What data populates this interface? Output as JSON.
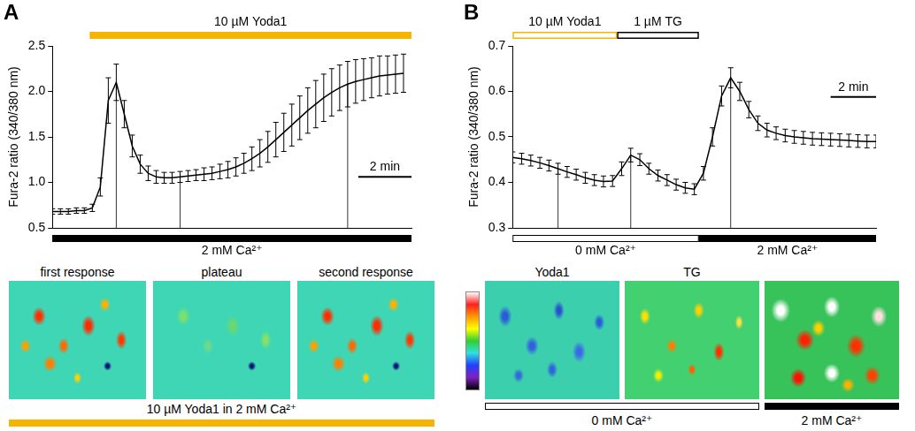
{
  "chart_data": [
    {
      "panel": "A",
      "type": "line",
      "y_label": "Fura-2 ratio (340/380 nm)",
      "x": [
        0,
        0.3,
        0.6,
        0.9,
        1.2,
        1.5,
        1.8,
        2.1,
        2.4,
        2.7,
        3,
        3.3,
        3.6,
        3.9,
        4.2,
        4.5,
        4.8,
        5.1,
        5.4,
        5.7,
        6,
        6.3,
        6.6,
        6.9,
        7.2,
        7.5,
        7.8,
        8.1,
        8.4,
        8.7,
        9,
        9.3,
        9.6,
        9.9,
        10.2,
        10.5,
        10.8,
        11.1,
        11.4,
        11.7,
        12,
        12.3,
        12.6,
        12.9,
        13.2
      ],
      "values": [
        0.68,
        0.68,
        0.68,
        0.69,
        0.69,
        0.72,
        0.95,
        1.9,
        2.1,
        1.75,
        1.4,
        1.2,
        1.1,
        1.06,
        1.05,
        1.05,
        1.06,
        1.07,
        1.08,
        1.09,
        1.1,
        1.12,
        1.14,
        1.17,
        1.21,
        1.26,
        1.32,
        1.39,
        1.47,
        1.55,
        1.63,
        1.71,
        1.79,
        1.86,
        1.93,
        1.99,
        2.04,
        2.08,
        2.11,
        2.13,
        2.15,
        2.17,
        2.18,
        2.19,
        2.2
      ],
      "errors": [
        0.03,
        0.03,
        0.03,
        0.03,
        0.03,
        0.04,
        0.1,
        0.25,
        0.2,
        0.15,
        0.12,
        0.1,
        0.08,
        0.07,
        0.06,
        0.06,
        0.06,
        0.06,
        0.06,
        0.07,
        0.07,
        0.08,
        0.09,
        0.1,
        0.11,
        0.13,
        0.15,
        0.17,
        0.19,
        0.21,
        0.23,
        0.24,
        0.25,
        0.26,
        0.26,
        0.26,
        0.25,
        0.25,
        0.24,
        0.23,
        0.22,
        0.22,
        0.21,
        0.21,
        0.21
      ],
      "color": "#000000",
      "xlim": [
        0,
        13.5
      ],
      "ylim": [
        0.5,
        2.5
      ],
      "yticks": [
        0.5,
        {
          "value": 1,
          "label": "1.0"
        },
        1.5,
        {
          "value": 2,
          "label": "2.0"
        },
        2.5
      ],
      "grid": false,
      "tick_labels": "y",
      "treatments": [
        {
          "label": "10 µM Yoda1",
          "start": 1.4,
          "end": 13.5,
          "color": "#f5b400"
        }
      ],
      "conditions": [
        {
          "label": "2 mM Ca²⁺",
          "start": 0,
          "end": 13.5,
          "color": "#000000"
        }
      ],
      "scale_bar": {
        "value": 2,
        "label": "2 min"
      },
      "images": [
        {
          "label": "first response",
          "x": 2.4,
          "condition": "10 µM Yoda1 in 2 mM Ca²⁺"
        },
        {
          "label": "plateau",
          "x": 4.8,
          "condition": "10 µM Yoda1 in 2 mM Ca²⁺"
        },
        {
          "label": "second response",
          "x": 11.1,
          "condition": "10 µM Yoda1 in 2 mM Ca²⁺"
        }
      ],
      "image_strip": [
        {
          "label": "10 µM Yoda1 in 2 mM Ca²⁺",
          "color": "#f5b400"
        }
      ]
    },
    {
      "panel": "B",
      "type": "line",
      "y_label": "Fura-2 ratio (340/380 nm)",
      "x": [
        0,
        0.4,
        0.8,
        1.2,
        1.6,
        2,
        2.4,
        2.8,
        3.2,
        3.6,
        4,
        4.4,
        4.8,
        5.2,
        5.6,
        6,
        6.4,
        6.8,
        7.2,
        7.6,
        8,
        8.4,
        8.8,
        9.2,
        9.6,
        10,
        10.4,
        10.8,
        11.2,
        11.6,
        12,
        12.4,
        12.8,
        13.2,
        13.6,
        14,
        14.4,
        14.8,
        15.2,
        15.6,
        16
      ],
      "values": [
        0.455,
        0.452,
        0.448,
        0.443,
        0.437,
        0.43,
        0.423,
        0.417,
        0.41,
        0.405,
        0.402,
        0.403,
        0.43,
        0.46,
        0.45,
        0.43,
        0.415,
        0.405,
        0.395,
        0.388,
        0.385,
        0.42,
        0.5,
        0.59,
        0.63,
        0.6,
        0.56,
        0.53,
        0.515,
        0.508,
        0.503,
        0.5,
        0.498,
        0.496,
        0.495,
        0.494,
        0.493,
        0.492,
        0.491,
        0.49,
        0.49
      ],
      "errors": [
        0.012,
        0.012,
        0.012,
        0.012,
        0.012,
        0.012,
        0.012,
        0.012,
        0.012,
        0.012,
        0.012,
        0.012,
        0.015,
        0.015,
        0.013,
        0.012,
        0.012,
        0.012,
        0.012,
        0.012,
        0.012,
        0.015,
        0.02,
        0.022,
        0.022,
        0.02,
        0.018,
        0.016,
        0.015,
        0.014,
        0.014,
        0.014,
        0.014,
        0.014,
        0.014,
        0.014,
        0.014,
        0.014,
        0.014,
        0.014,
        0.014
      ],
      "color": "#000000",
      "xlim": [
        0,
        16
      ],
      "ylim": [
        0.3,
        0.7
      ],
      "yticks": [
        0.3,
        0.4,
        0.5,
        0.6,
        0.7
      ],
      "grid": false,
      "tick_labels": "y",
      "treatments": [
        {
          "label": "10 µM Yoda1",
          "start": 0,
          "end": 4.6,
          "color": "#f5b400"
        },
        {
          "label": "1 µM TG",
          "start": 4.6,
          "end": 8.2,
          "color": "#000000"
        }
      ],
      "conditions": [
        {
          "label": "0 mM Ca²⁺",
          "start": 0,
          "end": 8.2,
          "color": "#ffffff"
        },
        {
          "label": "2 mM Ca²⁺",
          "start": 8.2,
          "end": 16,
          "color": "#000000"
        }
      ],
      "scale_bar": {
        "value": 2,
        "label": "2 min"
      },
      "images": [
        {
          "label": "Yoda1",
          "x": 2,
          "condition": "0 mM Ca²⁺"
        },
        {
          "label": "TG",
          "x": 5.2,
          "condition": "0 mM Ca²⁺"
        },
        {
          "label": null,
          "x": 9.6,
          "condition": "2 mM Ca²⁺"
        }
      ],
      "image_strip": [
        {
          "label": "0 mM Ca²⁺",
          "color": "#ffffff"
        },
        {
          "label": "2 mM Ca²⁺",
          "color": "#000000"
        }
      ]
    }
  ]
}
